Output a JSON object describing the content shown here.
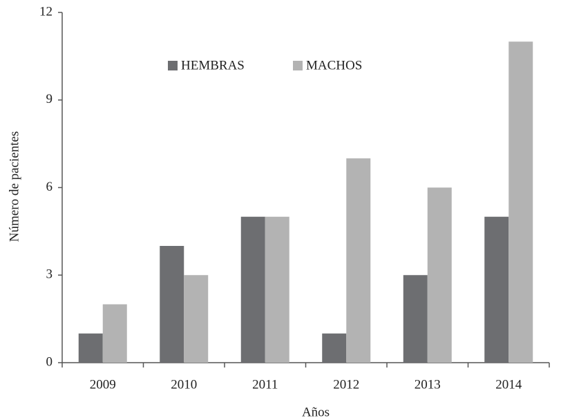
{
  "chart_data": {
    "type": "bar",
    "xlabel": "Años",
    "ylabel": "Número de pacientes",
    "categories": [
      "2009",
      "2010",
      "2011",
      "2012",
      "2013",
      "2014"
    ],
    "series": [
      {
        "name": "HEMBRAS",
        "color": "#6d6e71",
        "values": [
          1,
          4,
          5,
          1,
          3,
          5
        ]
      },
      {
        "name": "MACHOS",
        "color": "#b3b3b3",
        "values": [
          2,
          3,
          5,
          7,
          6,
          11
        ]
      }
    ],
    "ylim": [
      0,
      12
    ],
    "yticks": [
      0,
      3,
      6,
      9,
      12
    ],
    "grid": false,
    "legend": "top"
  }
}
